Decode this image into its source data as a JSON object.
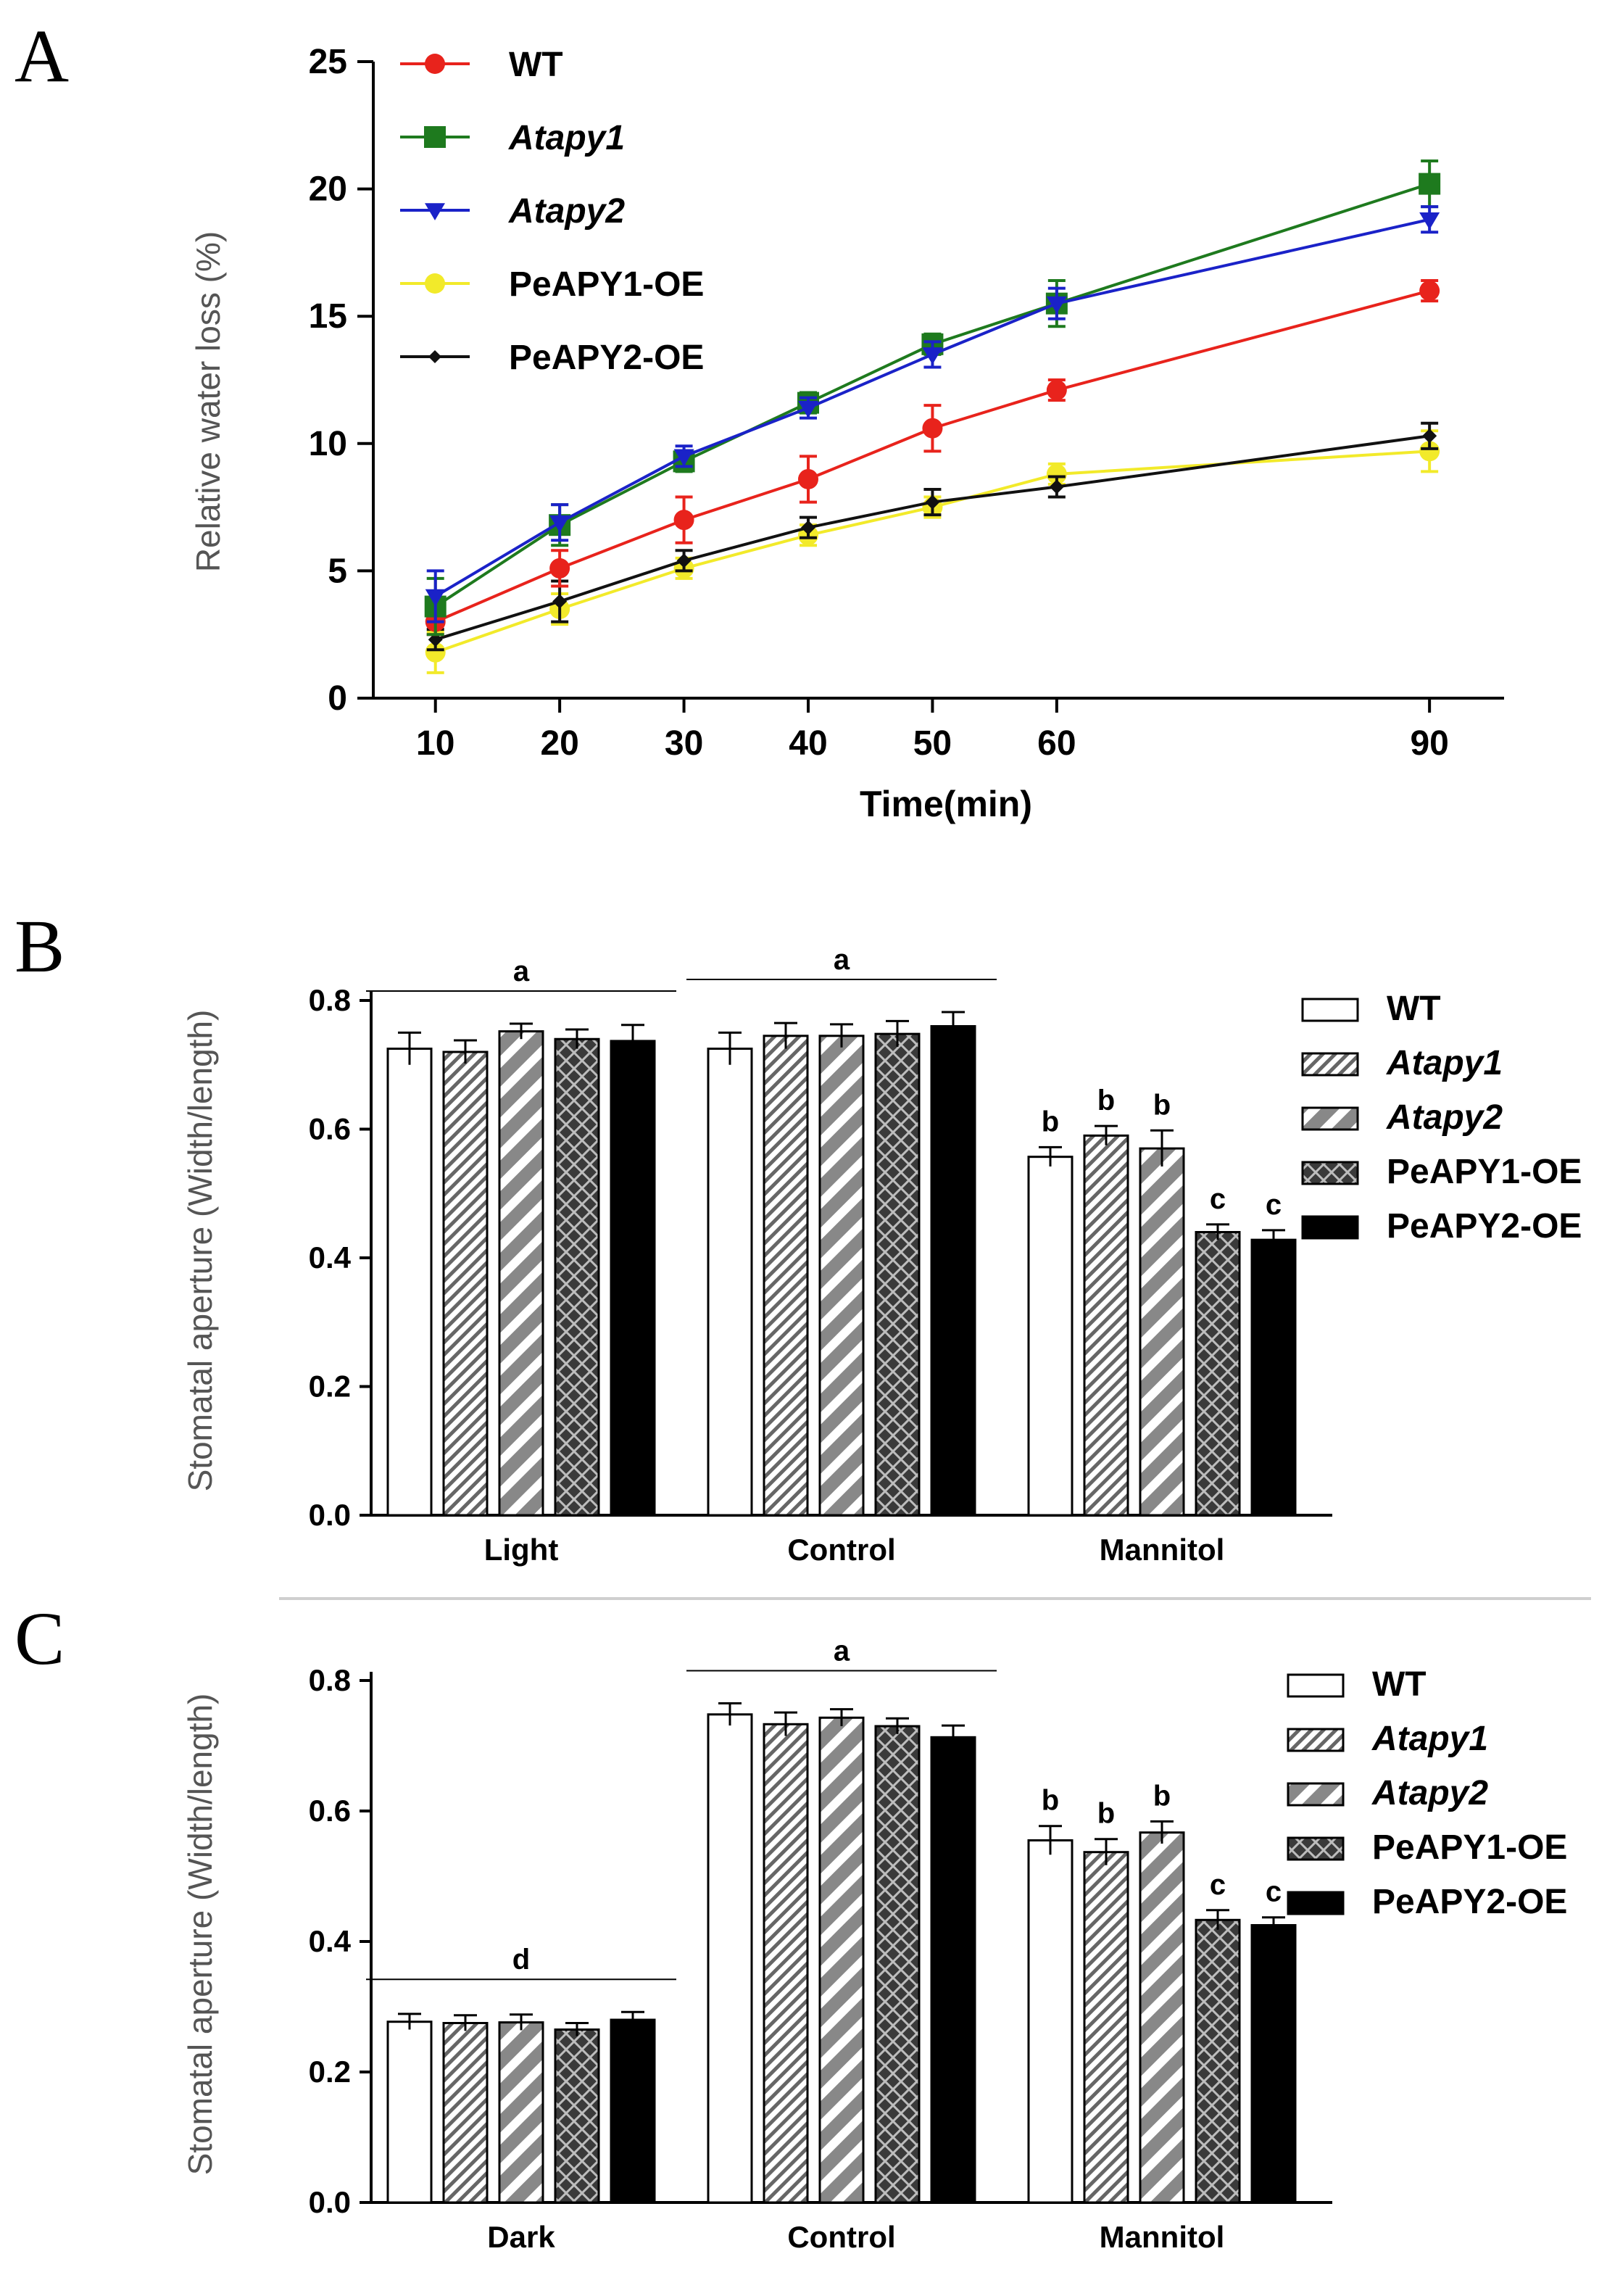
{
  "chart_data": [
    {
      "panel": "A",
      "type": "line",
      "xlabel": "Time(min)",
      "ylabel": "Relative water loss (%)",
      "ylim": [
        0,
        25
      ],
      "yticks": [
        "0",
        "5",
        "10",
        "15",
        "20",
        "25"
      ],
      "x": [
        10,
        20,
        30,
        40,
        50,
        60,
        90
      ],
      "xticks": [
        "10",
        "20",
        "30",
        "40",
        "50",
        "60",
        "90"
      ],
      "legend_position": "top-left",
      "series": [
        {
          "name": "WT",
          "italic": false,
          "color": "#e8231c",
          "marker": "circle",
          "values": [
            3.0,
            5.1,
            7.0,
            8.6,
            10.6,
            12.1,
            16.0
          ],
          "errors": [
            0.5,
            0.7,
            0.9,
            0.9,
            0.9,
            0.4,
            0.4
          ]
        },
        {
          "name": "Atapy1",
          "italic": true,
          "color": "#1e7a1e",
          "marker": "square",
          "values": [
            3.6,
            6.8,
            9.3,
            11.6,
            13.9,
            15.5,
            20.2
          ],
          "errors": [
            1.1,
            0.8,
            0.4,
            0.4,
            0.4,
            0.9,
            0.9
          ]
        },
        {
          "name": "Atapy2",
          "italic": true,
          "color": "#1a22c8",
          "marker": "triangle-down",
          "values": [
            4.0,
            6.9,
            9.5,
            11.4,
            13.5,
            15.5,
            18.8
          ],
          "errors": [
            1.0,
            0.7,
            0.4,
            0.4,
            0.5,
            0.6,
            0.5
          ]
        },
        {
          "name": "PeAPY1-OE",
          "italic": false,
          "color": "#f2ea2a",
          "marker": "circle",
          "values": [
            1.8,
            3.5,
            5.1,
            6.4,
            7.5,
            8.8,
            9.7
          ],
          "errors": [
            0.8,
            0.6,
            0.4,
            0.4,
            0.4,
            0.4,
            0.8
          ]
        },
        {
          "name": "PeAPY2-OE",
          "italic": false,
          "color": "#111111",
          "marker": "diamond",
          "values": [
            2.3,
            3.8,
            5.4,
            6.7,
            7.7,
            8.3,
            10.3
          ],
          "errors": [
            0.4,
            0.8,
            0.4,
            0.4,
            0.5,
            0.4,
            0.5
          ]
        }
      ]
    },
    {
      "panel": "B",
      "type": "bar",
      "ylabel": "Stomatal aperture (Width/length)",
      "ylim": [
        0,
        0.8
      ],
      "yticks": [
        "0.0",
        "0.2",
        "0.4",
        "0.6",
        "0.8"
      ],
      "categories": [
        "Light",
        "Control",
        "Mannitol"
      ],
      "legend_position": "top-right",
      "series": [
        {
          "name": "WT",
          "italic": false,
          "pattern": "white",
          "values": [
            0.725,
            0.725,
            0.557
          ],
          "errors": [
            0.025,
            0.025,
            0.015
          ]
        },
        {
          "name": "Atapy1",
          "italic": true,
          "pattern": "hatch-fine",
          "values": [
            0.72,
            0.745,
            0.59
          ],
          "errors": [
            0.018,
            0.02,
            0.015
          ]
        },
        {
          "name": "Atapy2",
          "italic": true,
          "pattern": "hatch-wide",
          "values": [
            0.752,
            0.745,
            0.57
          ],
          "errors": [
            0.012,
            0.018,
            0.028
          ]
        },
        {
          "name": "PeAPY1-OE",
          "italic": false,
          "pattern": "crosshatch",
          "values": [
            0.74,
            0.748,
            0.44
          ],
          "errors": [
            0.015,
            0.02,
            0.012
          ]
        },
        {
          "name": "PeAPY2-OE",
          "italic": false,
          "pattern": "black",
          "values": [
            0.737,
            0.76,
            0.428
          ],
          "errors": [
            0.025,
            0.022,
            0.015
          ]
        }
      ],
      "significance": [
        {
          "category": "Light",
          "label": "a",
          "scope": "group"
        },
        {
          "category": "Control",
          "label": "a",
          "scope": "group"
        },
        {
          "category": "Mannitol",
          "labels": [
            "b",
            "b",
            "b",
            "c",
            "c"
          ],
          "scope": "bars"
        }
      ]
    },
    {
      "panel": "C",
      "type": "bar",
      "ylabel": "Stomatal aperture (Width/length)",
      "ylim": [
        0,
        0.8
      ],
      "yticks": [
        "0.0",
        "0.2",
        "0.4",
        "0.6",
        "0.8"
      ],
      "categories": [
        "Dark",
        "Control",
        "Mannitol"
      ],
      "legend_position": "top-right",
      "series": [
        {
          "name": "WT",
          "italic": false,
          "pattern": "white",
          "values": [
            0.277,
            0.748,
            0.555
          ],
          "errors": [
            0.012,
            0.017,
            0.022
          ]
        },
        {
          "name": "Atapy1",
          "italic": true,
          "pattern": "hatch-fine",
          "values": [
            0.275,
            0.733,
            0.537
          ],
          "errors": [
            0.012,
            0.018,
            0.02
          ]
        },
        {
          "name": "Atapy2",
          "italic": true,
          "pattern": "hatch-wide",
          "values": [
            0.276,
            0.743,
            0.567
          ],
          "errors": [
            0.012,
            0.013,
            0.017
          ]
        },
        {
          "name": "PeAPY1-OE",
          "italic": false,
          "pattern": "crosshatch",
          "values": [
            0.265,
            0.73,
            0.433
          ],
          "errors": [
            0.01,
            0.012,
            0.015
          ]
        },
        {
          "name": "PeAPY2-OE",
          "italic": false,
          "pattern": "black",
          "values": [
            0.28,
            0.713,
            0.425
          ],
          "errors": [
            0.012,
            0.018,
            0.012
          ]
        }
      ],
      "significance": [
        {
          "category": "Dark",
          "label": "d",
          "scope": "group"
        },
        {
          "category": "Control",
          "label": "a",
          "scope": "group"
        },
        {
          "category": "Mannitol",
          "labels": [
            "b",
            "b",
            "b",
            "c",
            "c"
          ],
          "scope": "bars"
        }
      ]
    }
  ]
}
